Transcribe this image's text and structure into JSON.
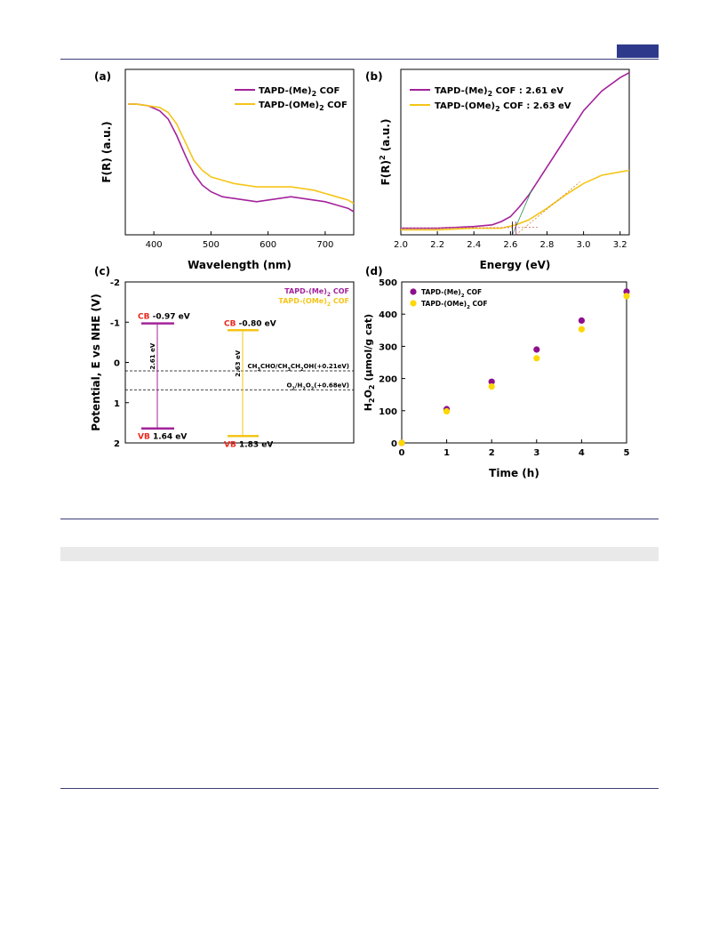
{
  "colors": {
    "me": "#a3239b",
    "ome": "#f5c518",
    "me_dot": "#8e0f8c",
    "ome_dot": "#ffd700",
    "rule": "#3a3f7a",
    "accent": "#2d3a8c",
    "red": "#e8281e"
  },
  "chart_data": [
    {
      "panel": "(a)",
      "type": "line",
      "xlabel": "Wavelength (nm)",
      "ylabel": "F(R) (a.u.)",
      "xlim": [
        350,
        750
      ],
      "ylim": [
        0,
        1
      ],
      "xticks": [
        "400",
        "500",
        "600",
        "700"
      ],
      "legend": "top-right",
      "series": [
        {
          "name": "TAPD-(Me)2 COF",
          "x": [
            355,
            370,
            390,
            410,
            425,
            440,
            455,
            470,
            485,
            500,
            520,
            540,
            560,
            580,
            600,
            620,
            640,
            660,
            680,
            700,
            720,
            740,
            750
          ],
          "y": [
            0.79,
            0.79,
            0.78,
            0.75,
            0.7,
            0.6,
            0.48,
            0.37,
            0.3,
            0.26,
            0.23,
            0.22,
            0.21,
            0.2,
            0.21,
            0.22,
            0.23,
            0.22,
            0.21,
            0.2,
            0.18,
            0.16,
            0.14
          ]
        },
        {
          "name": "TAPD-(OMe)2 COF",
          "x": [
            355,
            370,
            390,
            410,
            425,
            440,
            455,
            470,
            485,
            500,
            520,
            540,
            560,
            580,
            600,
            620,
            640,
            660,
            680,
            700,
            720,
            740,
            750
          ],
          "y": [
            0.79,
            0.79,
            0.78,
            0.77,
            0.74,
            0.67,
            0.56,
            0.45,
            0.39,
            0.35,
            0.33,
            0.31,
            0.3,
            0.29,
            0.29,
            0.29,
            0.29,
            0.28,
            0.27,
            0.25,
            0.23,
            0.21,
            0.19
          ]
        }
      ]
    },
    {
      "panel": "(b)",
      "type": "line",
      "xlabel": "Energy (eV)",
      "ylabel": "F(R)",
      "ylabel_sup": "2",
      "ylabel_tail": " (a.u.)",
      "xlim": [
        2.0,
        3.25
      ],
      "ylim": [
        0,
        1
      ],
      "xticks": [
        "2.0",
        "2.2",
        "2.4",
        "2.6",
        "2.8",
        "3.0",
        "3.2"
      ],
      "legend": "top-left",
      "series": [
        {
          "name": "TAPD-(Me)2 COF",
          "label": "TAPD-(Me)2 COF : 2.61 eV",
          "x": [
            2.0,
            2.2,
            2.4,
            2.5,
            2.55,
            2.6,
            2.65,
            2.7,
            2.8,
            2.9,
            3.0,
            3.1,
            3.2,
            3.25
          ],
          "y": [
            0.04,
            0.04,
            0.05,
            0.06,
            0.08,
            0.11,
            0.17,
            0.24,
            0.41,
            0.58,
            0.75,
            0.87,
            0.95,
            0.98
          ]
        },
        {
          "name": "TAPD-(OMe)2 COF",
          "label": "TAPD-(OMe)2 COF : 2.63 eV",
          "x": [
            2.0,
            2.2,
            2.4,
            2.55,
            2.63,
            2.7,
            2.8,
            2.9,
            3.0,
            3.1,
            3.2,
            3.25
          ],
          "y": [
            0.03,
            0.03,
            0.04,
            0.04,
            0.06,
            0.09,
            0.16,
            0.24,
            0.31,
            0.36,
            0.38,
            0.39
          ]
        }
      ]
    },
    {
      "panel": "(c)",
      "type": "diagram",
      "ylabel": "Potential, E vs NHE (V)",
      "ylim": [
        -2,
        2
      ],
      "yticks": [
        "-2",
        "-1",
        "0",
        "1",
        "2"
      ],
      "legend_me": "TAPD-(Me)2 COF",
      "legend_ome": "TAPD-(OMe)2 COF",
      "cb_tag": "CB",
      "vb_tag": "VB",
      "me": {
        "cb": -0.97,
        "vb": 1.64,
        "cb_text": " -0.97 eV",
        "vb_text": " 1.64 eV",
        "gap": "2.61 eV"
      },
      "ome": {
        "cb": -0.8,
        "vb": 1.83,
        "cb_text": " -0.80 eV",
        "vb_text": " 1.83 eV",
        "gap": "2.63 eV"
      },
      "levels": [
        {
          "value": 0.21,
          "label": "CH3CHO/CH3CH2OH(+0.21eV)"
        },
        {
          "value": 0.68,
          "label": "O2/H2O2(+0.68eV)"
        }
      ]
    },
    {
      "panel": "(d)",
      "type": "scatter",
      "xlabel": "Time (h)",
      "ylabel": "H2O2 (µmol/g cat)",
      "xlim": [
        0,
        5
      ],
      "ylim": [
        0,
        500
      ],
      "xticks": [
        "0",
        "1",
        "2",
        "3",
        "4",
        "5"
      ],
      "yticks": [
        "0",
        "100",
        "200",
        "300",
        "400",
        "500"
      ],
      "legend": "top-left",
      "x": [
        0,
        1,
        2,
        3,
        4,
        5
      ],
      "series": [
        {
          "name": "TAPD-(Me)2 COF",
          "values": [
            0,
            105,
            190,
            290,
            380,
            470
          ]
        },
        {
          "name": "TAPD-(OMe)2 COF",
          "values": [
            0,
            98,
            175,
            263,
            353,
            456
          ]
        }
      ]
    }
  ]
}
